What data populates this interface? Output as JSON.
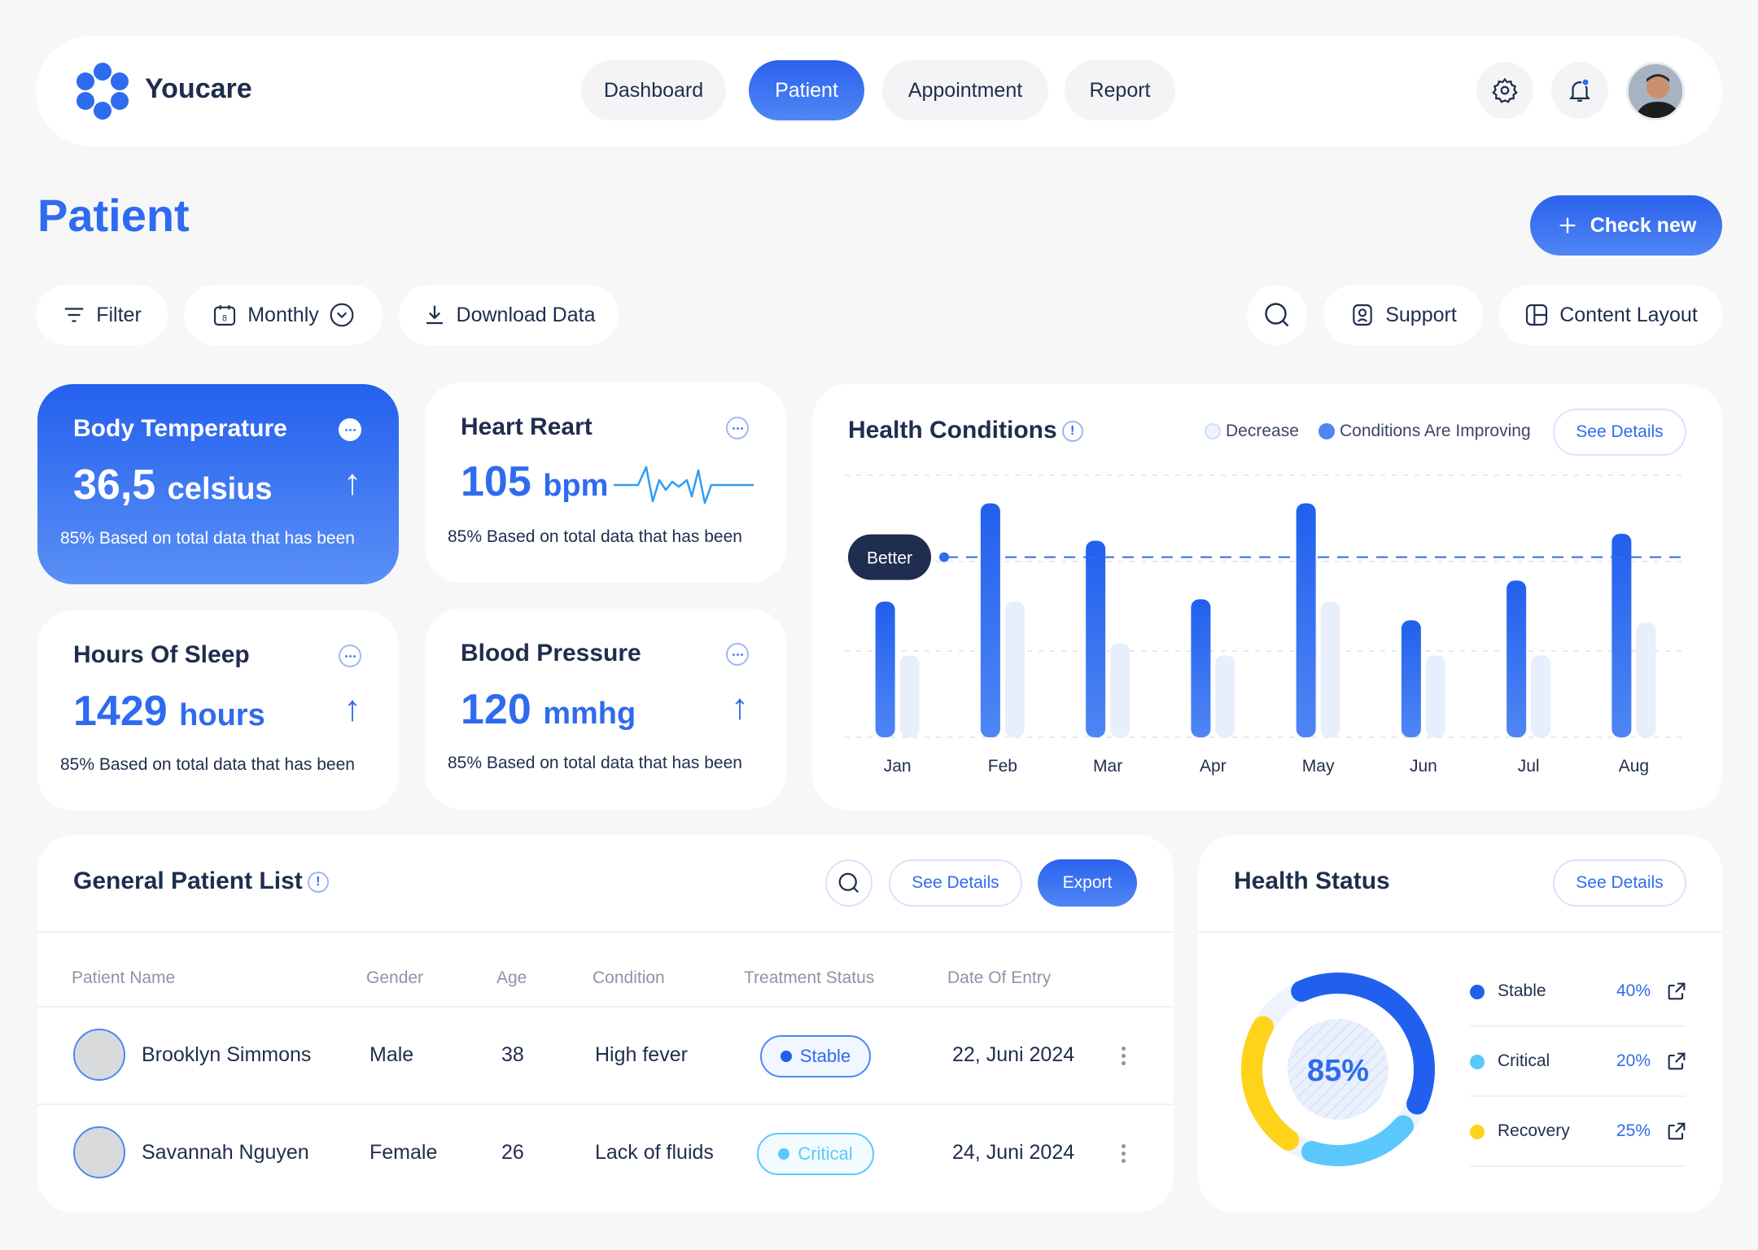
{
  "app": {
    "name": "Youcare"
  },
  "nav": {
    "items": [
      {
        "label": "Dashboard",
        "active": false
      },
      {
        "label": "Patient",
        "active": true
      },
      {
        "label": "Appointment",
        "active": false
      },
      {
        "label": "Report",
        "active": false
      }
    ]
  },
  "page": {
    "title": "Patient",
    "check_new_label": "Check new"
  },
  "toolbar": {
    "filter_label": "Filter",
    "period_label": "Monthly",
    "calendar_day": "8",
    "download_label": "Download Data",
    "support_label": "Support",
    "layout_label": "Content Layout"
  },
  "stats": [
    {
      "title": "Body Temperature",
      "value": "36,5",
      "unit": "celsius",
      "note": "85% Based on total data that has been"
    },
    {
      "title": "Heart Reart",
      "value": "105",
      "unit": "bpm",
      "note": "85% Based on total data that has been"
    },
    {
      "title": "Hours Of Sleep",
      "value": "1429",
      "unit": "hours",
      "note": "85% Based on total data that has been"
    },
    {
      "title": "Blood Pressure",
      "value": "120",
      "unit": "mmhg",
      "note": "85% Based on total data that has been"
    }
  ],
  "health_conditions": {
    "title": "Health Conditions",
    "info": "!",
    "legend": {
      "decrease": "Decrease",
      "improving": "Conditions Are Improving"
    },
    "see_details": "See Details",
    "marker_label": "Better"
  },
  "chart_data": {
    "type": "bar",
    "categories": [
      "Jan",
      "Feb",
      "Mar",
      "Apr",
      "May",
      "Jun",
      "Jul",
      "Aug"
    ],
    "series": [
      {
        "name": "Conditions Are Improving",
        "values": [
          58,
          100,
          84,
          59,
          100,
          50,
          67,
          87
        ]
      },
      {
        "name": "Decrease",
        "values": [
          35,
          58,
          40,
          35,
          58,
          35,
          35,
          49
        ]
      }
    ],
    "reference_line": {
      "label": "Better",
      "value": 77
    },
    "ylim": [
      0,
      112
    ],
    "grid": true,
    "legend_position": "top-right",
    "colors": {
      "primary": "#2f6bef",
      "secondary": "#e7eefc"
    }
  },
  "patient_list": {
    "title": "General Patient List",
    "info": "!",
    "see_details": "See Details",
    "export_label": "Export",
    "columns": [
      "Patient Name",
      "Gender",
      "Age",
      "Condition",
      "Treatment Status",
      "Date Of Entry"
    ],
    "rows": [
      {
        "name": "Brooklyn Simmons",
        "gender": "Male",
        "age": "38",
        "condition": "High fever",
        "status": "Stable",
        "date": "22, Juni 2024"
      },
      {
        "name": "Savannah Nguyen",
        "gender": "Female",
        "age": "26",
        "condition": "Lack of fluids",
        "status": "Critical",
        "date": "24, Juni 2024"
      }
    ]
  },
  "health_status": {
    "title": "Health Status",
    "see_details": "See Details",
    "center_value": "85%",
    "items": [
      {
        "label": "Stable",
        "percent": "40%",
        "value": 40,
        "color": "#2160ee"
      },
      {
        "label": "Critical",
        "percent": "20%",
        "value": 20,
        "color": "#5ac8fa"
      },
      {
        "label": "Recovery",
        "percent": "25%",
        "value": 25,
        "color": "#ffd31a"
      }
    ]
  }
}
